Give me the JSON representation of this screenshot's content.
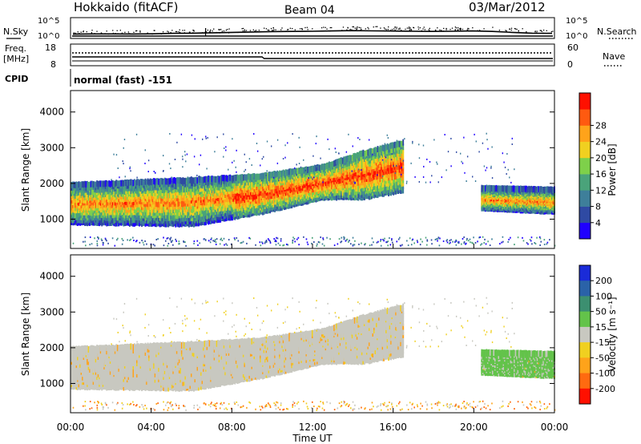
{
  "chart_data": {
    "type": "heatmap",
    "header": {
      "station": "Hokkaido (fitACF)",
      "beam": "Beam 04",
      "date": "03/Mar/2012"
    },
    "noise_panel": {
      "left_label": "N.Sky",
      "right_label": "N.Search",
      "left_ticks": [
        "10^5",
        "10^0"
      ],
      "right_ticks": [
        "10^5",
        "10^0"
      ],
      "sky_trace_level": [
        0.12,
        0.14,
        0.14,
        0.13,
        0.15,
        0.2,
        0.22,
        0.26,
        0.3,
        0.34,
        0.38,
        0.4,
        0.42,
        0.45,
        0.48,
        0.46,
        0.44,
        0.42,
        0.4,
        0.42,
        0.45,
        0.4,
        0.3,
        0.22,
        0.2
      ]
    },
    "freq_panel": {
      "left_label": "Freq.",
      "left_unit": "[MHz]",
      "left_ticks": [
        "18",
        "8"
      ],
      "right_label": "Nave",
      "right_ticks": [
        "60",
        "0"
      ],
      "cpid_label": "CPID",
      "cpid_value": "normal (fast) -151"
    },
    "power_panel": {
      "ylabel": "Slant Range [km]",
      "yticks": [
        1000,
        2000,
        3000,
        4000
      ],
      "ylim": [
        180,
        4600
      ],
      "colorbar_label": "Power [dB]",
      "colorbar_ticks": [
        "4",
        "8",
        "12",
        "16",
        "20",
        "24",
        "28"
      ],
      "colorbar_colors": [
        "#1f00ff",
        "#2f4aa3",
        "#3e7f9a",
        "#4aa37a",
        "#7ed04a",
        "#f0d020",
        "#ffa31a",
        "#ff5a10",
        "#ff1000"
      ]
    },
    "velocity_panel": {
      "ylabel": "Slant Range [km]",
      "yticks": [
        1000,
        2000,
        3000,
        4000
      ],
      "ylim": [
        180,
        4600
      ],
      "colorbar_label": "Velocity [m s⁻¹]",
      "colorbar_ticks": [
        "200",
        "100",
        "50",
        "15",
        "-15",
        "-50",
        "-100",
        "-200"
      ],
      "colorbar_colors": [
        "#1a2bd8",
        "#2a62a8",
        "#3c8f70",
        "#63c34a",
        "#c8c8c0",
        "#f0d020",
        "#ffa31a",
        "#ff6a10",
        "#ff1000"
      ]
    },
    "xaxis": {
      "label": "Time UT",
      "ticks": [
        "00:00",
        "04:00",
        "08:00",
        "12:00",
        "16:00",
        "20:00",
        "00:00"
      ],
      "xlim_hours": [
        0,
        24
      ]
    },
    "echo_bands": [
      {
        "t0": 0.0,
        "t1": 6.0,
        "lo0": 900,
        "hi0": 2000,
        "lo1": 850,
        "hi1": 2150
      },
      {
        "t0": 6.0,
        "t1": 9.5,
        "lo0": 850,
        "hi0": 2150,
        "lo1": 1200,
        "hi1": 2250
      },
      {
        "t0": 9.5,
        "t1": 12.5,
        "lo0": 1200,
        "hi0": 2250,
        "lo1": 1600,
        "hi1": 2500
      },
      {
        "t0": 12.5,
        "t1": 14.5,
        "lo0": 1600,
        "hi0": 2500,
        "lo1": 1600,
        "hi1": 2900
      },
      {
        "t0": 14.5,
        "t1": 16.5,
        "lo0": 1600,
        "hi0": 2900,
        "lo1": 1800,
        "hi1": 3200
      },
      {
        "t0": 20.3,
        "t1": 24.0,
        "lo0": 1300,
        "hi0": 1900,
        "lo1": 1200,
        "hi1": 1850
      }
    ]
  }
}
